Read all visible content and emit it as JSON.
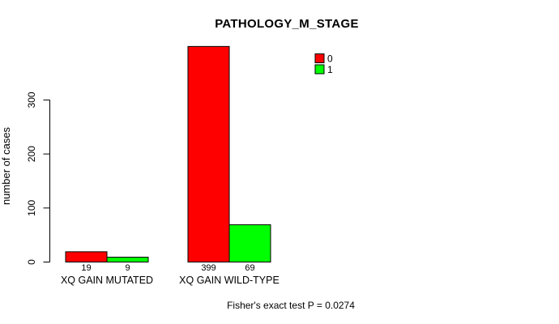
{
  "chart_data": {
    "type": "bar",
    "title": "PATHOLOGY_M_STAGE",
    "xlabel": "",
    "ylabel": "number of cases",
    "categories": [
      "XQ GAIN MUTATED",
      "XQ GAIN WILD-TYPE"
    ],
    "series": [
      {
        "name": "0",
        "color": "#FF0000",
        "values": [
          19,
          399
        ]
      },
      {
        "name": "1",
        "color": "#00FF00",
        "values": [
          9,
          69
        ]
      }
    ],
    "legend": [
      {
        "label": "0",
        "color": "#FF0000"
      },
      {
        "label": "1",
        "color": "#00FF00"
      }
    ],
    "legend_position": "top-right",
    "yticks": [
      0,
      100,
      200,
      300
    ],
    "ylim": [
      0,
      400
    ],
    "grid": false,
    "bar_border_color": "#000000",
    "axis_color": "#000000",
    "annotation": "Fisher's exact test P = 0.0274"
  }
}
